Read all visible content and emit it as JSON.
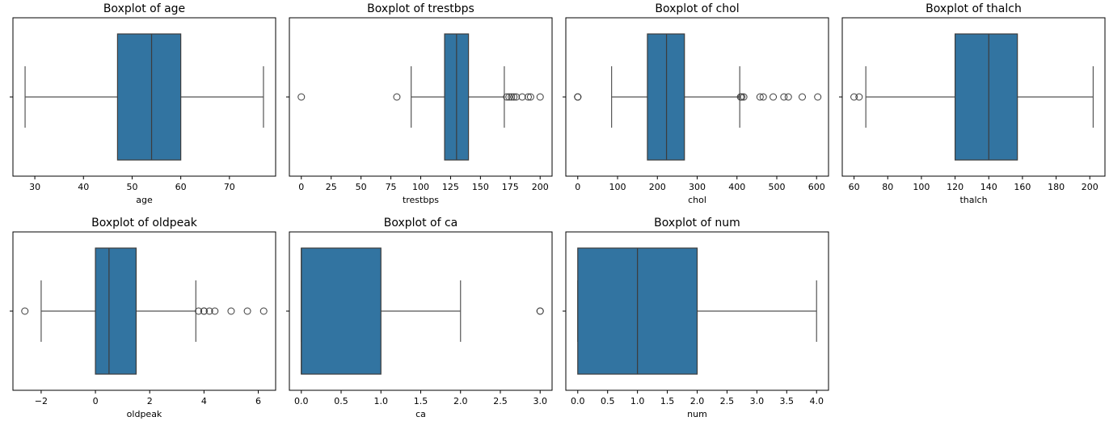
{
  "chart_data": [
    {
      "type": "boxplot",
      "title": "Boxplot of age",
      "xlabel": "age",
      "xlim": [
        25.5,
        79.5
      ],
      "ticks": [
        30,
        40,
        50,
        60,
        70
      ],
      "tick_labels": [
        "30",
        "40",
        "50",
        "60",
        "70"
      ],
      "min": 28,
      "q1": 47,
      "median": 54,
      "q3": 60,
      "max": 77,
      "outliers": []
    },
    {
      "type": "boxplot",
      "title": "Boxplot of trestbps",
      "xlabel": "trestbps",
      "xlim": [
        -10,
        210
      ],
      "ticks": [
        0,
        25,
        50,
        75,
        100,
        125,
        150,
        175,
        200
      ],
      "tick_labels": [
        "0",
        "25",
        "50",
        "75",
        "100",
        "125",
        "150",
        "175",
        "200"
      ],
      "min": 92,
      "q1": 120,
      "median": 130,
      "q3": 140,
      "max": 170,
      "outliers": [
        0,
        80,
        172,
        174,
        176,
        178,
        180,
        185,
        190,
        192,
        200
      ]
    },
    {
      "type": "boxplot",
      "title": "Boxplot of chol",
      "xlabel": "chol",
      "xlim": [
        -30,
        630
      ],
      "ticks": [
        0,
        100,
        200,
        300,
        400,
        500,
        600
      ],
      "tick_labels": [
        "0",
        "100",
        "200",
        "300",
        "400",
        "500",
        "600"
      ],
      "min": 85,
      "q1": 175,
      "median": 223,
      "q3": 268,
      "max": 407,
      "outliers": [
        0,
        0,
        0,
        409,
        412,
        417,
        458,
        466,
        491,
        518,
        529,
        564,
        603
      ]
    },
    {
      "type": "boxplot",
      "title": "Boxplot of thalch",
      "xlabel": "thalch",
      "xlim": [
        53,
        209
      ],
      "ticks": [
        60,
        80,
        100,
        120,
        140,
        160,
        180,
        200
      ],
      "tick_labels": [
        "60",
        "80",
        "100",
        "120",
        "140",
        "160",
        "180",
        "200"
      ],
      "min": 67,
      "q1": 120,
      "median": 140,
      "q3": 157,
      "max": 202,
      "outliers": [
        60,
        63
      ]
    },
    {
      "type": "boxplot",
      "title": "Boxplot of oldpeak",
      "xlabel": "oldpeak",
      "xlim": [
        -3.04,
        6.64
      ],
      "ticks": [
        -2,
        0,
        2,
        4,
        6
      ],
      "tick_labels": [
        "−2",
        "0",
        "2",
        "4",
        "6"
      ],
      "min": -2,
      "q1": 0,
      "median": 0.5,
      "q3": 1.5,
      "max": 3.7,
      "outliers": [
        -2.6,
        3.8,
        4.0,
        4.0,
        4.2,
        4.4,
        5.0,
        5.6,
        6.2
      ]
    },
    {
      "type": "boxplot",
      "title": "Boxplot of ca",
      "xlabel": "ca",
      "xlim": [
        -0.15,
        3.15
      ],
      "ticks": [
        0,
        0.5,
        1,
        1.5,
        2,
        2.5,
        3
      ],
      "tick_labels": [
        "0.0",
        "0.5",
        "1.0",
        "1.5",
        "2.0",
        "2.5",
        "3.0"
      ],
      "min": 0,
      "q1": 0,
      "median": 0,
      "q3": 1,
      "max": 2,
      "outliers": [
        3,
        3
      ]
    },
    {
      "type": "boxplot",
      "title": "Boxplot of num",
      "xlabel": "num",
      "xlim": [
        -0.2,
        4.2
      ],
      "ticks": [
        0,
        0.5,
        1,
        1.5,
        2,
        2.5,
        3,
        3.5,
        4
      ],
      "tick_labels": [
        "0.0",
        "0.5",
        "1.0",
        "1.5",
        "2.0",
        "2.5",
        "3.0",
        "3.5",
        "4.0"
      ],
      "min": 0,
      "q1": 0,
      "median": 1,
      "q3": 2,
      "max": 4,
      "outliers": []
    }
  ],
  "colors": {
    "box_fill": "#3274a1",
    "line": "#3c3c3c",
    "whisker": "#555555",
    "frame": "#000000"
  }
}
